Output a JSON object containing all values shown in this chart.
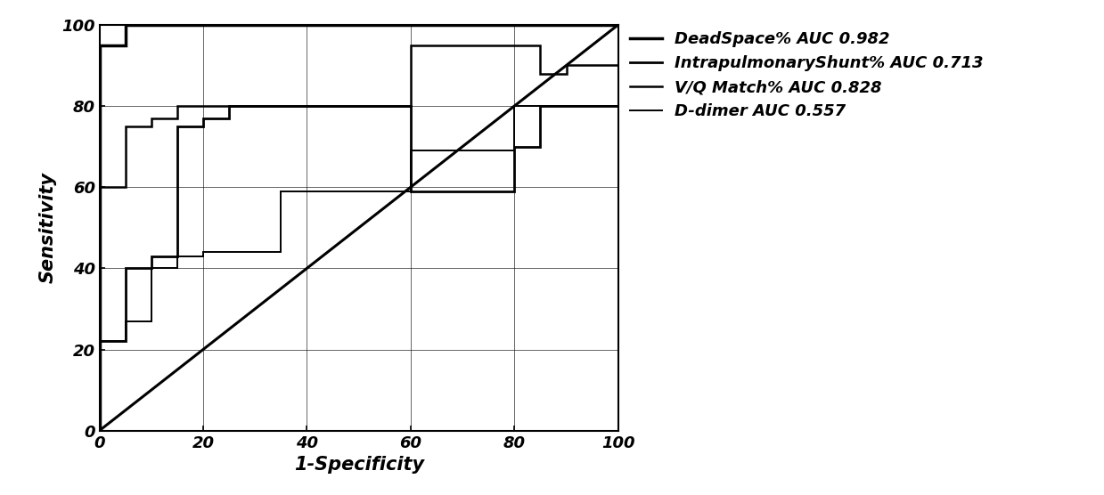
{
  "xlabel": "1-Specificity",
  "ylabel": "Sensitivity",
  "xlim": [
    0,
    100
  ],
  "ylim": [
    0,
    100
  ],
  "xticks": [
    0,
    20,
    40,
    60,
    80,
    100
  ],
  "yticks": [
    0,
    20,
    40,
    60,
    80,
    100
  ],
  "background_color": "#ffffff",
  "line_color": "#000000",
  "grid_color": "#000000",
  "curve_deadspace": {
    "label": "DeadSpace% AUC 0.982",
    "fpr": [
      0,
      0,
      5,
      5,
      100,
      100
    ],
    "tpr": [
      0,
      95,
      95,
      100,
      100,
      100
    ],
    "lw": 2.5
  },
  "curve_shunt": {
    "label": "IntrapulmonaryShunt% AUC 0.713",
    "fpr": [
      0,
      0,
      5,
      5,
      10,
      10,
      15,
      15,
      20,
      20,
      25,
      25,
      30,
      30,
      60,
      60,
      80,
      80,
      85,
      85,
      100
    ],
    "tpr": [
      0,
      22,
      22,
      40,
      40,
      43,
      43,
      75,
      75,
      77,
      77,
      80,
      80,
      80,
      80,
      59,
      59,
      70,
      70,
      80,
      80
    ],
    "lw": 2.0
  },
  "curve_vq": {
    "label": "V/Q Match% AUC 0.828",
    "fpr": [
      0,
      0,
      5,
      5,
      10,
      10,
      15,
      15,
      20,
      20,
      60,
      60,
      85,
      85,
      90,
      90,
      100
    ],
    "tpr": [
      0,
      60,
      60,
      75,
      75,
      77,
      77,
      80,
      80,
      80,
      80,
      95,
      95,
      88,
      88,
      90,
      90
    ],
    "lw": 1.8
  },
  "curve_ddimer": {
    "label": "D-dimer AUC 0.557",
    "fpr": [
      0,
      0,
      5,
      5,
      10,
      10,
      15,
      15,
      20,
      20,
      30,
      30,
      35,
      35,
      60,
      60,
      80,
      80,
      85,
      85,
      100
    ],
    "tpr": [
      0,
      22,
      22,
      27,
      27,
      40,
      40,
      43,
      43,
      44,
      44,
      44,
      44,
      59,
      59,
      69,
      69,
      80,
      80,
      80,
      80
    ],
    "lw": 1.4
  },
  "legend_labels": [
    "DeadSpace% AUC 0.982",
    "IntrapulmonaryShunt% AUC 0.713",
    "V/Q Match% AUC 0.828",
    "D-dimer AUC 0.557"
  ],
  "legend_fontsize": 13,
  "axis_label_fontsize": 15,
  "tick_fontsize": 13,
  "figsize": [
    12.39,
    5.56
  ],
  "dpi": 100
}
